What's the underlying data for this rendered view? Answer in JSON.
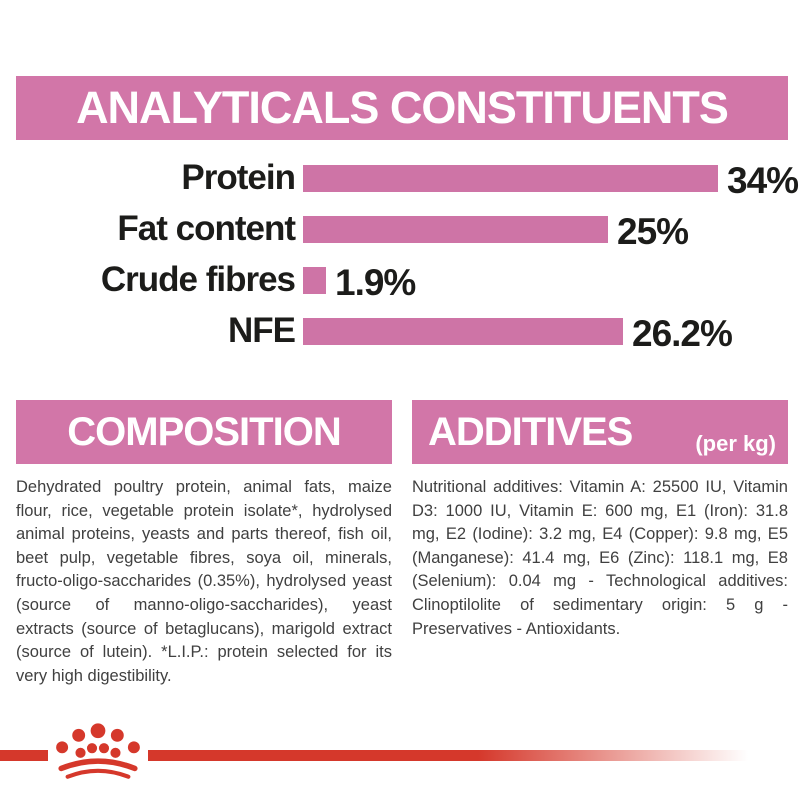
{
  "banner": {
    "title": "ANALYTICALS CONSTITUENTS"
  },
  "chart_data": {
    "type": "bar",
    "orientation": "horizontal",
    "title": "ANALYTICALS CONSTITUENTS",
    "categories": [
      "Protein",
      "Fat content",
      "Crude fibres",
      "NFE"
    ],
    "values": [
      34,
      25,
      1.9,
      26.2
    ],
    "value_labels": [
      "34%",
      "25%",
      "1.9%",
      "26.2%"
    ],
    "unit": "%",
    "xlim": [
      0,
      34
    ],
    "grid": false,
    "legend": false,
    "bar_color": "#ce74a6",
    "label_color": "#1c1c1a"
  },
  "sections": {
    "composition": {
      "title": "COMPOSITION",
      "body": "Dehydrated poultry protein, animal fats, maize flour, rice, vegetable protein isolate*, hydrolysed animal proteins, yeasts and parts thereof, fish oil, beet pulp, vegetable fibres, soya oil, minerals, fructo-oligo-saccharides (0.35%), hydrolysed yeast (source of manno-oligo-saccharides), yeast extracts (source of betaglucans), marigold extract (source of lutein). *L.I.P.: protein selected for its very high digestibility."
    },
    "additives": {
      "title": "ADDITIVES",
      "unit": "(per kg)",
      "body": "Nutritional additives: Vitamin A: 25500 IU, Vitamin D3: 1000 IU, Vitamin E: 600 mg, E1 (Iron): 31.8 mg, E2 (Iodine): 3.2 mg, E4 (Copper): 9.8 mg, E5 (Manganese): 41.4 mg, E6 (Zinc): 118.1 mg, E8 (Selenium): 0.04 mg - Technological additives: Clinoptilolite of sedimentary origin: 5 g - Preservatives - Antioxidants."
    }
  },
  "logo": {
    "icon": "royal-canin-crown-logo"
  },
  "colors": {
    "accent_pink": "#d276a8",
    "bar_pink": "#ce74a6",
    "brand_red": "#d5382b",
    "heading_text": "#ffffff",
    "label_text": "#1c1c1a",
    "body_text": "#404040",
    "background": "#ffffff"
  }
}
